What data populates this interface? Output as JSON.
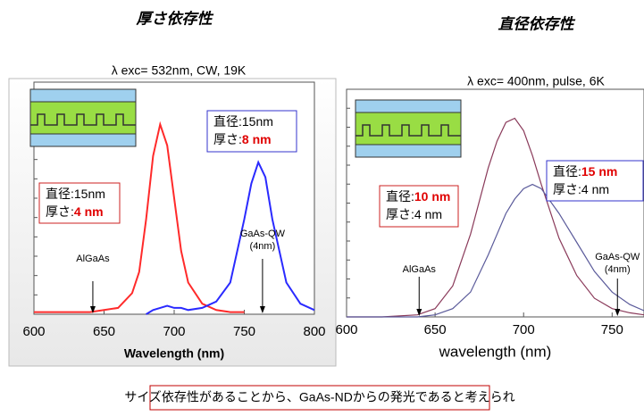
{
  "chart_data": [
    {
      "type": "line",
      "title": "厚さ依存性",
      "subtitle": "λ exc= 532nm, CW, 19K",
      "x_label": "Wavelength (nm)",
      "x": [
        600,
        620,
        640,
        650,
        660,
        670,
        675,
        680,
        685,
        690,
        695,
        700,
        705,
        710,
        720,
        730,
        740,
        750,
        755,
        760,
        765,
        770,
        780,
        790,
        800
      ],
      "series": [
        {
          "color": "#ff2a2a",
          "values": [
            0.01,
            0.01,
            0.01,
            0.02,
            0.03,
            0.1,
            0.2,
            0.45,
            0.75,
            0.9,
            0.8,
            0.55,
            0.3,
            0.15,
            0.05,
            0.02,
            0.01,
            0.01,
            null,
            null,
            null,
            null,
            null,
            null,
            null
          ]
        },
        {
          "color": "#2a2aff",
          "values": [
            null,
            null,
            null,
            null,
            null,
            null,
            null,
            0.0,
            0.02,
            0.03,
            0.04,
            0.03,
            0.03,
            0.02,
            0.03,
            0.06,
            0.15,
            0.45,
            0.62,
            0.72,
            0.65,
            0.45,
            0.15,
            0.05,
            0.02
          ]
        }
      ],
      "xlim": [
        600,
        800
      ],
      "xticks": [
        600,
        650,
        700,
        750,
        800
      ],
      "ylim": [
        0,
        1.1
      ],
      "annotations": [
        {
          "lines": [
            [
              "直径:15nm"
            ],
            [
              "厚さ:",
              "8 nm"
            ]
          ]
        },
        {
          "lines": [
            [
              "直径:15nm"
            ],
            [
              "厚さ:",
              "4 nm"
            ]
          ]
        }
      ],
      "markers": [
        {
          "text": [
            "AlGaAs"
          ],
          "x": 642
        },
        {
          "text": [
            "GaAs-QW",
            "(4nm)"
          ],
          "x": 763
        }
      ]
    },
    {
      "type": "line",
      "title": "直径依存性",
      "subtitle": "λ exc= 400nm, pulse, 6K",
      "x_label": "wavelength (nm)",
      "x": [
        600,
        620,
        640,
        650,
        660,
        670,
        680,
        685,
        690,
        695,
        700,
        705,
        710,
        720,
        730,
        740,
        750,
        760,
        768
      ],
      "series": [
        {
          "color": "#8a3a5a",
          "values": [
            0,
            0,
            0.01,
            0.04,
            0.15,
            0.4,
            0.72,
            0.85,
            0.94,
            0.96,
            0.9,
            0.78,
            0.64,
            0.38,
            0.2,
            0.09,
            0.04,
            0.02,
            0.01
          ]
        },
        {
          "color": "#5a5a9a",
          "values": [
            0,
            0,
            0,
            0.01,
            0.04,
            0.12,
            0.3,
            0.4,
            0.5,
            0.57,
            0.62,
            0.64,
            0.62,
            0.5,
            0.36,
            0.22,
            0.12,
            0.06,
            0.03
          ]
        }
      ],
      "xlim": [
        600,
        768
      ],
      "xticks": [
        600,
        650,
        700,
        750
      ],
      "ylim": [
        0,
        1.1
      ],
      "annotations": [
        {
          "lines": [
            [
              "直径:",
              "10 nm"
            ],
            [
              "厚さ:4 nm"
            ]
          ]
        },
        {
          "lines": [
            [
              "直径:",
              "15 nm"
            ],
            [
              "厚さ:4 nm"
            ]
          ]
        }
      ],
      "markers": [
        {
          "text": [
            "AlGaAs"
          ],
          "x": 641
        },
        {
          "text": [
            "GaAs-QW",
            "(4nm)"
          ],
          "x": 753
        }
      ]
    }
  ],
  "caption": "サイズ依存性があることから、GaAs-NDからの発光であると考えられ"
}
